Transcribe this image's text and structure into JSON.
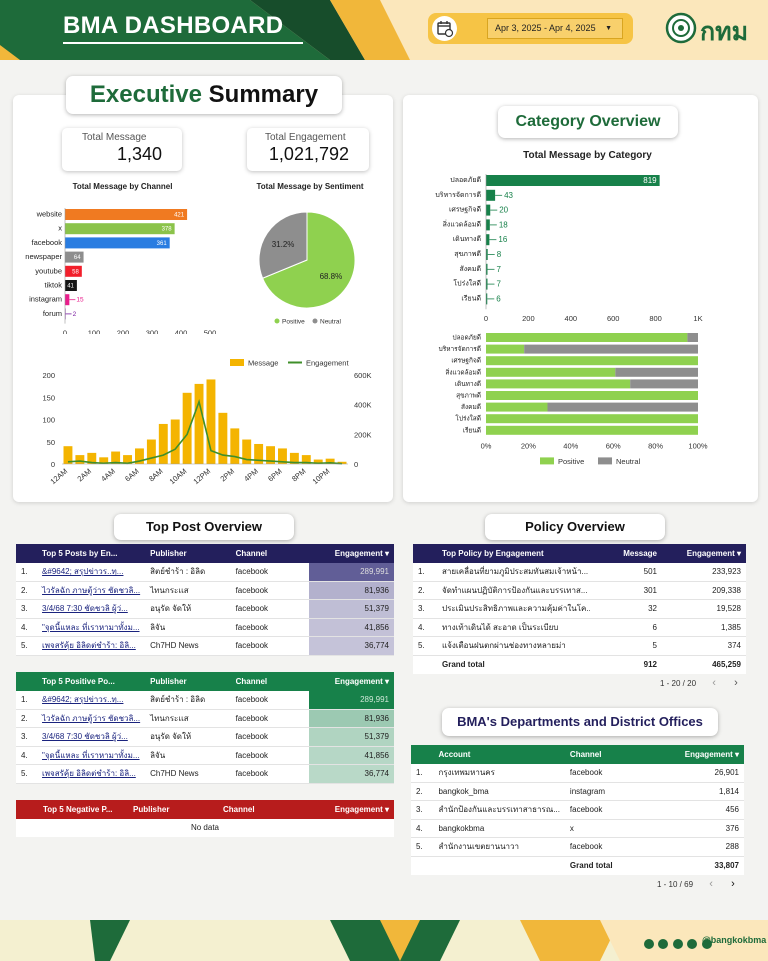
{
  "header": {
    "title": "BMA DASHBOARD",
    "date_range": "Apr 3, 2025 - Apr 4, 2025",
    "logo_text": "กทม"
  },
  "footer": {
    "handle": "@bangkokbma"
  },
  "executive": {
    "title_part1": "Executive",
    "title_part2": "Summary",
    "total_message_label": "Total Message",
    "total_message": "1,340",
    "total_engagement_label": "Total Engagement",
    "total_engagement": "1,021,792",
    "channel_chart_title": "Total Message by Channel",
    "sentiment_chart_title": "Total Message by Sentiment"
  },
  "category": {
    "title": "Category Overview",
    "chart_title": "Total Message by Category"
  },
  "chart_data": [
    {
      "type": "bar",
      "orientation": "horizontal",
      "title": "Total Message by Channel",
      "categories": [
        "website",
        "x",
        "facebook",
        "newspaper",
        "youtube",
        "tiktok",
        "instagram",
        "forum"
      ],
      "values": [
        421,
        378,
        361,
        64,
        58,
        41,
        15,
        2
      ],
      "colors": [
        "#f07a21",
        "#8bc34a",
        "#2a7de1",
        "#8e8e8e",
        "#f21f2b",
        "#151515",
        "#e91e8c",
        "#7b1fa2"
      ],
      "xticks": [
        "0",
        "100",
        "200",
        "300",
        "400",
        "500"
      ],
      "xlim": [
        0,
        500
      ]
    },
    {
      "type": "pie",
      "title": "Total Message by Sentiment",
      "slices": [
        {
          "name": "Positive",
          "value": 68.8,
          "label": "68.8%",
          "color": "#8fd14f"
        },
        {
          "name": "Neutral",
          "value": 31.2,
          "label": "31.2%",
          "color": "#8e8e8e"
        }
      ]
    },
    {
      "type": "bar",
      "title": "Total Message by Category",
      "categories": [
        "ปลอดภัยดี",
        "บริหารจัดการดี",
        "เศรษฐกิจดี",
        "สิ่งแวดล้อมดี",
        "เดินทางดี",
        "สุขภาพดี",
        "สังคมดี",
        "โปร่งใสดี",
        "เรียนดี"
      ],
      "values": [
        819,
        43,
        20,
        18,
        16,
        8,
        7,
        7,
        6
      ],
      "xticks": [
        "0",
        "200",
        "400",
        "600",
        "800",
        "1K"
      ],
      "xlim": [
        0,
        1000
      ]
    },
    {
      "type": "bar",
      "stacked": "percent",
      "categories": [
        "ปลอดภัยดี",
        "บริหารจัดการดี",
        "เศรษฐกิจดี",
        "สิ่งแวดล้อมดี",
        "เดินทางดี",
        "สุขภาพดี",
        "สังคมดี",
        "โปร่งใสดี",
        "เรียนดี"
      ],
      "series": [
        {
          "name": "Positive",
          "color": "#8fd14f",
          "values": [
            95,
            18,
            100,
            61,
            68,
            100,
            29,
            100,
            100
          ]
        },
        {
          "name": "Neutral",
          "color": "#8e8e8e",
          "values": [
            5,
            82,
            0,
            39,
            32,
            0,
            71,
            0,
            0
          ]
        }
      ],
      "xticks": [
        "0%",
        "20%",
        "40%",
        "60%",
        "80%",
        "100%"
      ]
    },
    {
      "type": "bar+line",
      "legend": [
        "Message",
        "Engagement"
      ],
      "x": [
        "12AM",
        "1AM",
        "2AM",
        "3AM",
        "4AM",
        "5AM",
        "6AM",
        "7AM",
        "8AM",
        "9AM",
        "10AM",
        "11AM",
        "12PM",
        "1PM",
        "2PM",
        "3PM",
        "4PM",
        "5PM",
        "6PM",
        "7PM",
        "8PM",
        "9PM",
        "10PM",
        "11PM"
      ],
      "xticks": [
        "12AM",
        "2AM",
        "4AM",
        "6AM",
        "8AM",
        "10AM",
        "12PM",
        "2PM",
        "4PM",
        "6PM",
        "8PM",
        "10PM"
      ],
      "series": [
        {
          "name": "Message",
          "axis": "left",
          "color": "#f4b400",
          "values": [
            40,
            20,
            25,
            15,
            28,
            20,
            35,
            55,
            90,
            100,
            160,
            180,
            190,
            115,
            80,
            55,
            45,
            40,
            35,
            25,
            20,
            10,
            12,
            5
          ]
        },
        {
          "name": "Engagement",
          "axis": "right",
          "color": "#3f8f2a",
          "values": [
            15000,
            20000,
            10000,
            5000,
            10000,
            5000,
            20000,
            40000,
            60000,
            100000,
            200000,
            420000,
            90000,
            60000,
            50000,
            30000,
            25000,
            20000,
            15000,
            10000,
            10000,
            5000,
            8000,
            2000
          ]
        }
      ],
      "ylim_left": [
        0,
        200
      ],
      "ylim_right": [
        0,
        600000
      ],
      "yticks_left": [
        "0",
        "50",
        "100",
        "150",
        "200"
      ],
      "yticks_right": [
        "0",
        "200K",
        "400K",
        "600K"
      ]
    }
  ],
  "top_post": {
    "title": "Top Post Overview",
    "table1": {
      "headers": [
        "Top 5 Posts by En...",
        "Publisher",
        "Channel",
        "Engagement ▾"
      ],
      "rows": [
        [
          "1.",
          "&#9642; สรุปข่าวร..ทฺ...",
          "สิตย์ชำร้า : อิลิด",
          "facebook",
          "289,991"
        ],
        [
          "2.",
          "ไวรัลฉัก ภาษตู้ว่าร ชัดชวลิ...",
          "ไทนกระเเส",
          "facebook",
          "81,936"
        ],
        [
          "3.",
          "3/4/68 7:30 ชัดชวลิ ผู้ว่...",
          "อนุรัด จัดให้",
          "facebook",
          "51,379"
        ],
        [
          "4.",
          "\"จุดนี้แหละ ที่เราหามาทั้งม...",
          "ลิจัน",
          "facebook",
          "41,856"
        ],
        [
          "5.",
          "เพจสรัคุ้ย อิลิดต่ชำร้า: อิลิ...",
          "Ch7HD News",
          "facebook",
          "36,774"
        ]
      ]
    },
    "table2": {
      "headers": [
        "Top 5 Positive Po...",
        "Publisher",
        "Channel",
        "Engagement ▾"
      ],
      "rows": [
        [
          "1.",
          "&#9642; สรุปข่าวร..ทฺ...",
          "สิตย์ชำร้า : อิลิด",
          "facebook",
          "289,991"
        ],
        [
          "2.",
          "ไวรัลฉัก ภาษตู้ว่าร ชัดชวลิ...",
          "ไทนกระเเส",
          "facebook",
          "81,936"
        ],
        [
          "3.",
          "3/4/68 7:30 ชัดชวลิ ผู้ว่...",
          "อนุรัด จัดให้",
          "facebook",
          "51,379"
        ],
        [
          "4.",
          "\"จุดนี้แหละ ที่เราหามาทั้งม...",
          "ลิจัน",
          "facebook",
          "41,856"
        ],
        [
          "5.",
          "เพจสรัคุ้ย อิลิดต่ชำร้า: อิลิ...",
          "Ch7HD News",
          "facebook",
          "36,774"
        ]
      ]
    },
    "table3": {
      "headers": [
        "Top 5 Negative P...",
        "Publisher",
        "Channel",
        "Engagement ▾"
      ],
      "empty": "No data"
    }
  },
  "policy": {
    "title": "Policy Overview",
    "headers": [
      "Top Policy by Engagement",
      "Message",
      "Engagement ▾"
    ],
    "rows": [
      [
        "1.",
        "สายเคลื่อนที่ยามภูมิประสมทันสมเจ้าหน้า...",
        "501",
        "233,923"
      ],
      [
        "2.",
        "จัดทำแผนปฏิบัติการป้องกันและบรรเทาส...",
        "301",
        "209,338"
      ],
      [
        "3.",
        "ประเมินประสิทธิภาพและความคุ้มค่าในโค...",
        "32",
        "19,528"
      ],
      [
        "4.",
        "ทางเท้าเดินได้ สะอาด เป็นระเบียบ",
        "6",
        "1,385"
      ],
      [
        "5.",
        "แจ้งเตือนฝนตกผ่านช่องทางหลายม่า",
        "5",
        "374"
      ]
    ],
    "total_label": "Grand total",
    "total_message": "912",
    "total_engagement": "465,259",
    "pager": "1 - 20 / 20"
  },
  "departments": {
    "title": "BMA's Departments and District Offices",
    "headers": [
      "Account",
      "Channel",
      "Engagement ▾"
    ],
    "rows": [
      [
        "1.",
        "กรุงเทพมหานคร",
        "facebook",
        "26,901"
      ],
      [
        "2.",
        "bangkok_bma",
        "instagram",
        "1,814"
      ],
      [
        "3.",
        "สำนักป้องกันและบรรเทาสาธารณ...",
        "facebook",
        "456"
      ],
      [
        "4.",
        "bangkokbma",
        "x",
        "376"
      ],
      [
        "5.",
        "สำนักงานเขตยานนาวา",
        "facebook",
        "288"
      ]
    ],
    "total_label": "Grand total",
    "total": "33,807",
    "pager": "1 - 10 / 69"
  }
}
